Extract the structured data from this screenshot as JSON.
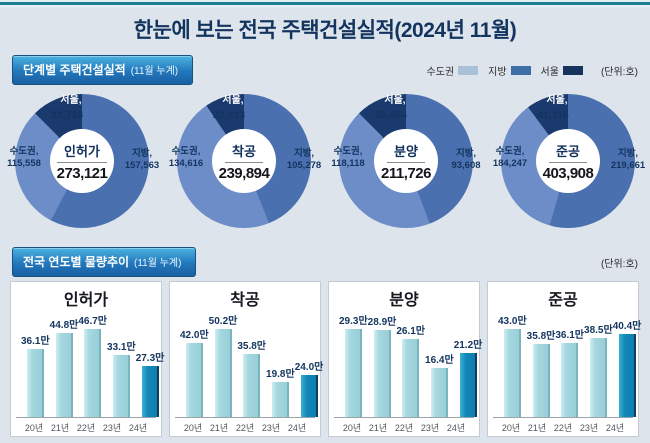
{
  "page": {
    "title": "한눈에 보는 전국 주택건설실적(2024년 11월)"
  },
  "section1": {
    "header": "단계별 주택건설실적",
    "header_sub": "(11월 누계)",
    "unit_note": "(단위:호)",
    "legend": [
      {
        "label": "수도권",
        "color": "#a9c0d8"
      },
      {
        "label": "지방",
        "color": "#3e6da8"
      },
      {
        "label": "서울",
        "color": "#16335e"
      }
    ]
  },
  "section2": {
    "header": "전국 연도별 물량추이",
    "header_sub": "(11월 누계)",
    "unit_note": "(단위:호)"
  },
  "colors": {
    "donut_sudogwon": "#6d8dc8",
    "donut_jibang": "#4a70b0",
    "donut_seoul": "#1a3a6e",
    "bar_light": "#a5d7df",
    "bar_dark": "#1187b7",
    "accent_navy": "#13345f"
  },
  "chart_data": [
    {
      "type": "donut",
      "label": "인허가",
      "total": 273121,
      "total_display": "273,121",
      "slices": [
        {
          "name": "서울",
          "label": "서울,",
          "value": 33716,
          "display": "33,716"
        },
        {
          "name": "수도권",
          "label": "수도권,",
          "value": 115558,
          "display": "115,558"
        },
        {
          "name": "지방",
          "label": "지방,",
          "value": 157563,
          "display": "157,563"
        }
      ]
    },
    {
      "type": "donut",
      "label": "착공",
      "total": 239894,
      "total_display": "239,894",
      "slices": [
        {
          "name": "서울",
          "label": "서울,",
          "value": 22813,
          "display": "22,813"
        },
        {
          "name": "수도권",
          "label": "수도권,",
          "value": 134616,
          "display": "134,616"
        },
        {
          "name": "지방",
          "label": "지방,",
          "value": 105278,
          "display": "105,278"
        }
      ]
    },
    {
      "type": "donut",
      "label": "분양",
      "total": 211726,
      "total_display": "211,726",
      "slices": [
        {
          "name": "서울",
          "label": "서울,",
          "value": 26084,
          "display": "26,084"
        },
        {
          "name": "수도권",
          "label": "수도권,",
          "value": 118118,
          "display": "118,118"
        },
        {
          "name": "지방",
          "label": "지방,",
          "value": 93608,
          "display": "93,608"
        }
      ]
    },
    {
      "type": "donut",
      "label": "준공",
      "total": 403908,
      "total_display": "403,908",
      "slices": [
        {
          "name": "서울",
          "label": "서울,",
          "value": 41116,
          "display": "41,116"
        },
        {
          "name": "수도권",
          "label": "수도권,",
          "value": 184247,
          "display": "184,247"
        },
        {
          "name": "지방",
          "label": "지방,",
          "value": 219661,
          "display": "219,661"
        }
      ]
    },
    {
      "type": "bar",
      "title": "인허가",
      "unit": "만",
      "categories": [
        "20년",
        "21년",
        "22년",
        "23년",
        "24년"
      ],
      "values": [
        36.1,
        44.8,
        46.7,
        33.1,
        27.3
      ],
      "labels": [
        "36.1만",
        "44.8만",
        "46.7만",
        "33.1만",
        "27.3만"
      ],
      "highlight_index": 4
    },
    {
      "type": "bar",
      "title": "착공",
      "unit": "만",
      "categories": [
        "20년",
        "21년",
        "22년",
        "23년",
        "24년"
      ],
      "values": [
        42.0,
        50.2,
        35.8,
        19.8,
        24.0
      ],
      "labels": [
        "42.0만",
        "50.2만",
        "35.8만",
        "19.8만",
        "24.0만"
      ],
      "highlight_index": 4
    },
    {
      "type": "bar",
      "title": "분양",
      "unit": "만",
      "categories": [
        "20년",
        "21년",
        "22년",
        "23년",
        "24년"
      ],
      "values": [
        29.3,
        28.9,
        26.1,
        16.4,
        21.2
      ],
      "labels": [
        "29.3만",
        "28.9만",
        "26.1만",
        "16.4만",
        "21.2만"
      ],
      "highlight_index": 4
    },
    {
      "type": "bar",
      "title": "준공",
      "unit": "만",
      "categories": [
        "20년",
        "21년",
        "22년",
        "23년",
        "24년"
      ],
      "values": [
        43.0,
        35.8,
        36.1,
        38.5,
        40.4
      ],
      "labels": [
        "43.0만",
        "35.8만",
        "36.1만",
        "38.5만",
        "40.4만"
      ],
      "highlight_index": 4
    }
  ]
}
